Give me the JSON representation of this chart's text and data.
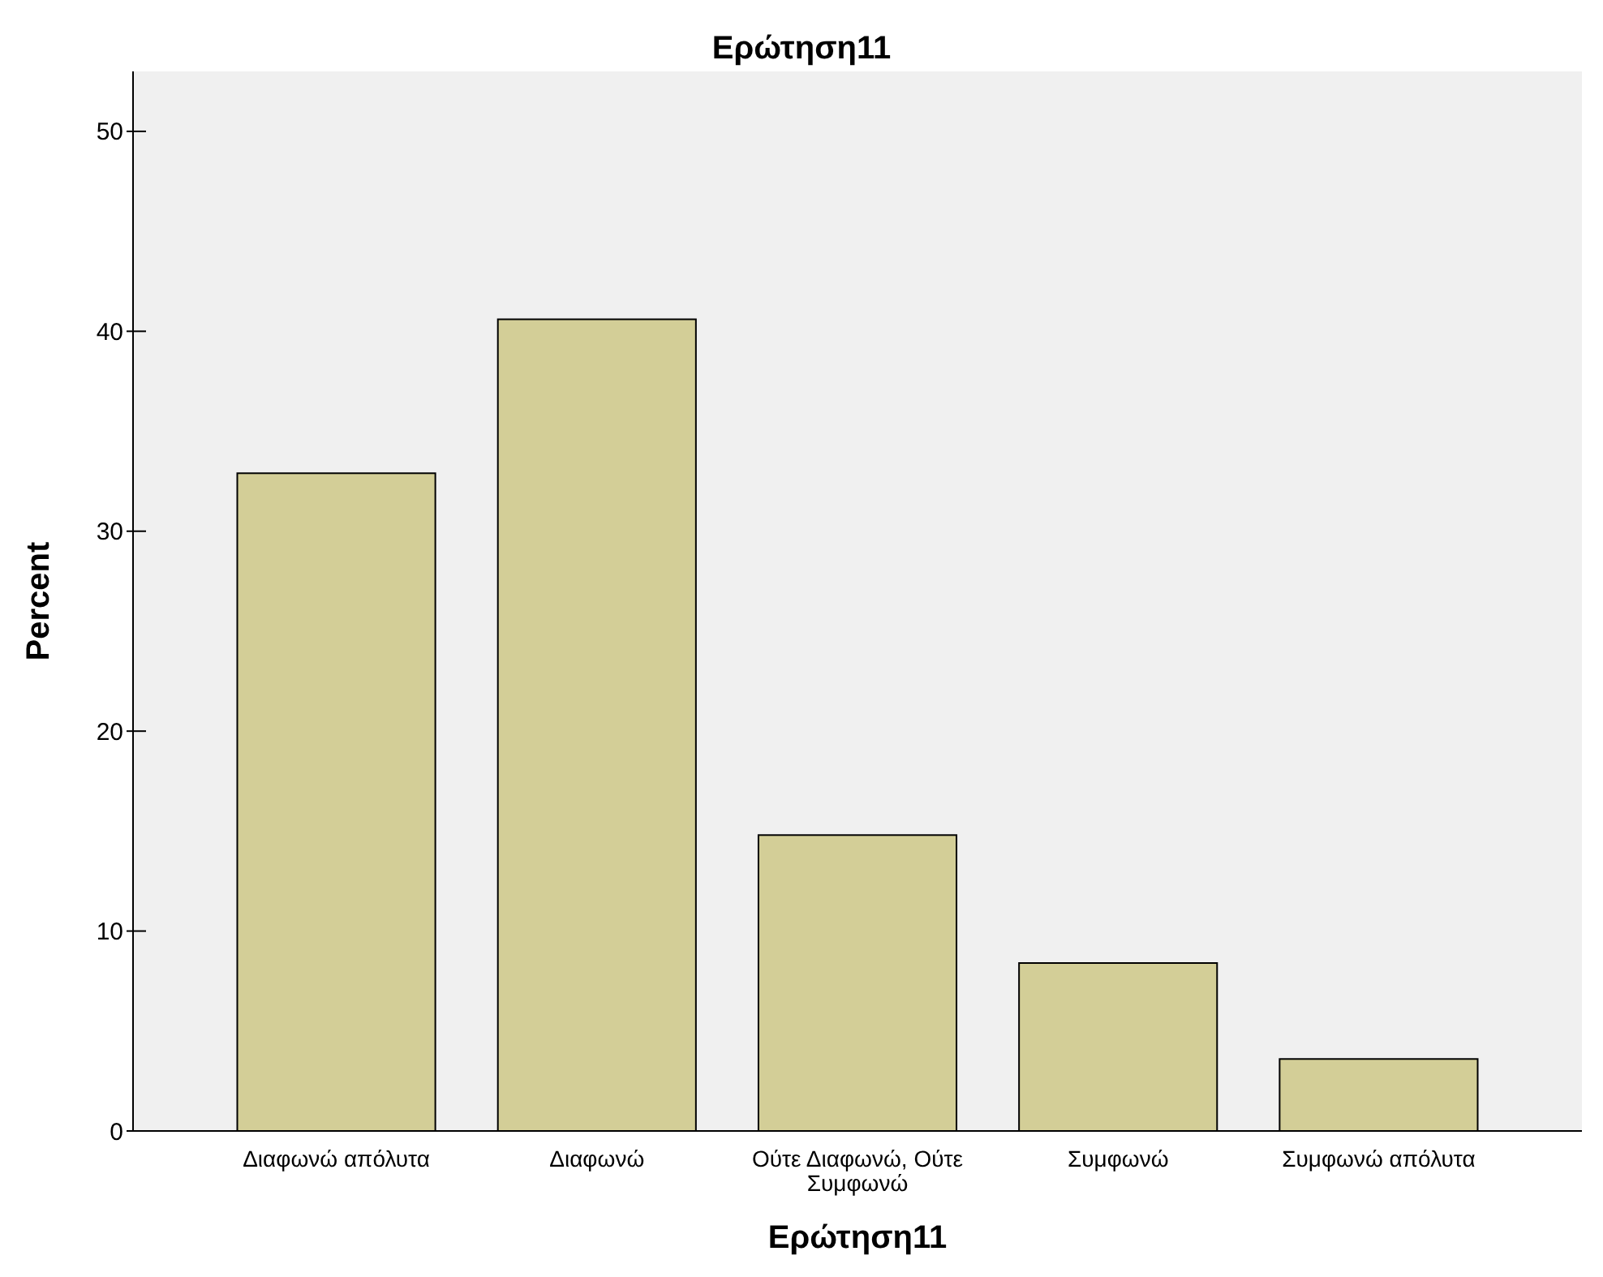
{
  "chart_data": {
    "type": "bar",
    "title": "Ερώτηση11",
    "xlabel": "Ερώτηση11",
    "ylabel": "Percent",
    "categories": [
      "Διαφωνώ απόλυτα",
      "Διαφωνώ",
      "Ούτε Διαφωνώ, Ούτε Συμφωνώ",
      "Συμφωνώ",
      "Συμφωνώ απόλυτα"
    ],
    "values": [
      32.9,
      40.6,
      14.8,
      8.4,
      3.6
    ],
    "color": "#d3ce97",
    "ylim": [
      0,
      53
    ],
    "yticks": [
      0,
      10,
      20,
      30,
      40,
      50
    ],
    "grid": false
  }
}
